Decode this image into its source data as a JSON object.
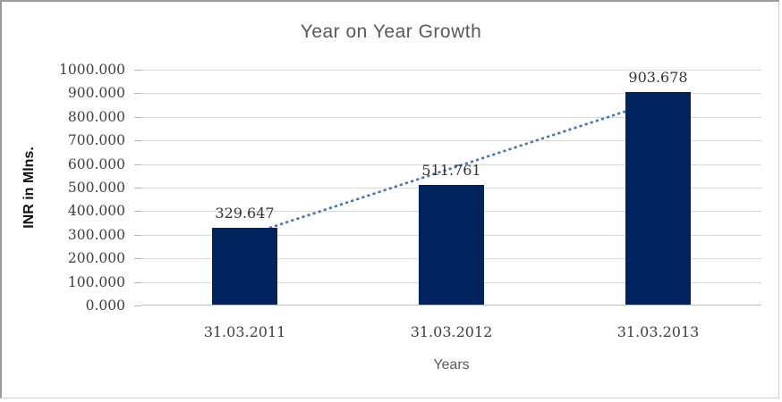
{
  "chart_data": {
    "type": "bar",
    "title": "Year on Year Growth",
    "xlabel": "Years",
    "ylabel": "INR in Mlns.",
    "categories": [
      "31.03.2011",
      "31.03.2012",
      "31.03.2013"
    ],
    "values": [
      329.647,
      511.761,
      903.678
    ],
    "data_labels": [
      "329.647",
      "511.761",
      "903.678"
    ],
    "y_ticks": [
      "0.000",
      "100.000",
      "200.000",
      "300.000",
      "400.000",
      "500.000",
      "600.000",
      "700.000",
      "800.000",
      "900.000",
      "1000.000"
    ],
    "y_tick_values": [
      0,
      100,
      200,
      300,
      400,
      500,
      600,
      700,
      800,
      900,
      1000
    ],
    "ylim": [
      0,
      1000
    ],
    "grid": true,
    "legend": "none",
    "bar_color": "#02245e",
    "gridline_color": "#d9d9d9",
    "trendline": {
      "type": "linear",
      "style": "dotted",
      "color": "#4478bd"
    }
  }
}
